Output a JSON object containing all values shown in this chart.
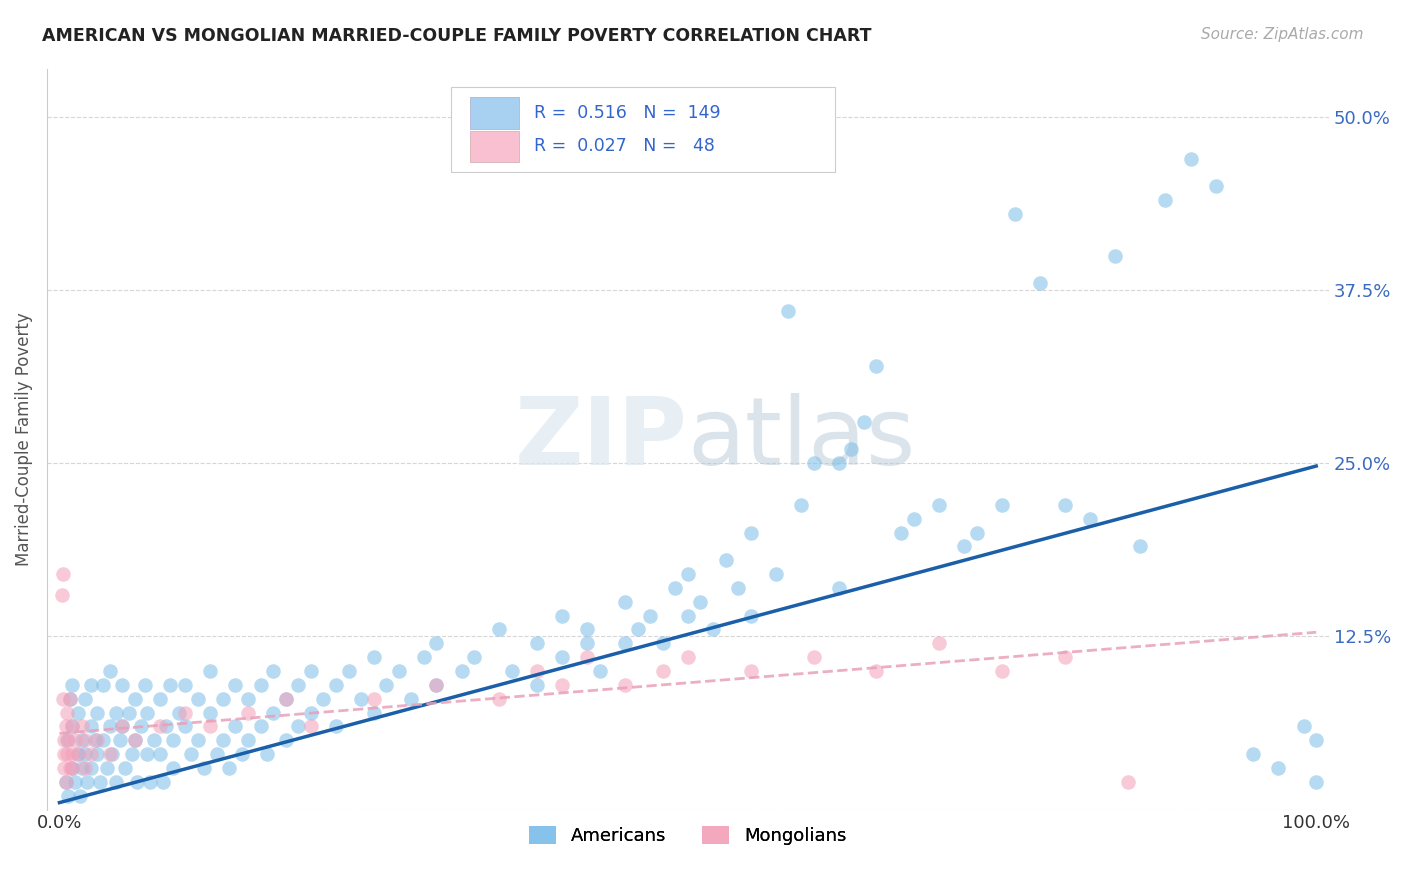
{
  "title": "AMERICAN VS MONGOLIAN MARRIED-COUPLE FAMILY POVERTY CORRELATION CHART",
  "source": "Source: ZipAtlas.com",
  "ylabel": "Married-Couple Family Poverty",
  "yticks": [
    0.0,
    0.125,
    0.25,
    0.375,
    0.5
  ],
  "ytick_labels": [
    "",
    "12.5%",
    "25.0%",
    "37.5%",
    "50.0%"
  ],
  "xlim": [
    -0.01,
    1.01
  ],
  "ylim": [
    0.0,
    0.535
  ],
  "american_color": "#7bbde8",
  "mongolian_color": "#f4a0b8",
  "american_line_color": "#1a5fa8",
  "mongolian_line_color": "#e8a0b8",
  "background_color": "#ffffff",
  "grid_color": "#cccccc",
  "title_color": "#222222",
  "watermark_color": "#dde8f0",
  "legend_am_color": "#a8d0f0",
  "legend_mo_color": "#f8c0d0",
  "am_line_y0": 0.005,
  "am_line_y1": 0.248,
  "mo_line_y0": 0.055,
  "mo_line_y1": 0.128,
  "americans_x": [
    0.005,
    0.006,
    0.007,
    0.008,
    0.01,
    0.01,
    0.01,
    0.012,
    0.015,
    0.015,
    0.016,
    0.018,
    0.018,
    0.02,
    0.02,
    0.022,
    0.025,
    0.025,
    0.025,
    0.028,
    0.03,
    0.03,
    0.032,
    0.035,
    0.035,
    0.038,
    0.04,
    0.04,
    0.042,
    0.045,
    0.045,
    0.048,
    0.05,
    0.05,
    0.052,
    0.055,
    0.058,
    0.06,
    0.06,
    0.062,
    0.065,
    0.068,
    0.07,
    0.07,
    0.072,
    0.075,
    0.08,
    0.08,
    0.082,
    0.085,
    0.088,
    0.09,
    0.09,
    0.095,
    0.1,
    0.1,
    0.105,
    0.11,
    0.11,
    0.115,
    0.12,
    0.12,
    0.125,
    0.13,
    0.13,
    0.135,
    0.14,
    0.14,
    0.145,
    0.15,
    0.15,
    0.16,
    0.16,
    0.165,
    0.17,
    0.17,
    0.18,
    0.18,
    0.19,
    0.19,
    0.2,
    0.2,
    0.21,
    0.22,
    0.22,
    0.23,
    0.24,
    0.25,
    0.25,
    0.26,
    0.27,
    0.28,
    0.29,
    0.3,
    0.3,
    0.32,
    0.33,
    0.35,
    0.36,
    0.38,
    0.38,
    0.4,
    0.4,
    0.42,
    0.42,
    0.43,
    0.45,
    0.45,
    0.46,
    0.47,
    0.48,
    0.49,
    0.5,
    0.5,
    0.51,
    0.52,
    0.53,
    0.54,
    0.55,
    0.55,
    0.57,
    0.58,
    0.59,
    0.6,
    0.62,
    0.62,
    0.63,
    0.64,
    0.65,
    0.67,
    0.68,
    0.7,
    0.72,
    0.73,
    0.75,
    0.76,
    0.78,
    0.8,
    0.82,
    0.84,
    0.86,
    0.88,
    0.9,
    0.92,
    0.95,
    0.97,
    0.99,
    1.0,
    1.0
  ],
  "americans_y": [
    0.02,
    0.05,
    0.01,
    0.08,
    0.03,
    0.06,
    0.09,
    0.02,
    0.04,
    0.07,
    0.01,
    0.05,
    0.03,
    0.04,
    0.08,
    0.02,
    0.06,
    0.09,
    0.03,
    0.05,
    0.04,
    0.07,
    0.02,
    0.05,
    0.09,
    0.03,
    0.06,
    0.1,
    0.04,
    0.07,
    0.02,
    0.05,
    0.06,
    0.09,
    0.03,
    0.07,
    0.04,
    0.08,
    0.05,
    0.02,
    0.06,
    0.09,
    0.04,
    0.07,
    0.02,
    0.05,
    0.08,
    0.04,
    0.02,
    0.06,
    0.09,
    0.05,
    0.03,
    0.07,
    0.06,
    0.09,
    0.04,
    0.08,
    0.05,
    0.03,
    0.07,
    0.1,
    0.04,
    0.08,
    0.05,
    0.03,
    0.09,
    0.06,
    0.04,
    0.08,
    0.05,
    0.09,
    0.06,
    0.04,
    0.1,
    0.07,
    0.08,
    0.05,
    0.09,
    0.06,
    0.1,
    0.07,
    0.08,
    0.09,
    0.06,
    0.1,
    0.08,
    0.11,
    0.07,
    0.09,
    0.1,
    0.08,
    0.11,
    0.09,
    0.12,
    0.1,
    0.11,
    0.13,
    0.1,
    0.12,
    0.09,
    0.14,
    0.11,
    0.13,
    0.12,
    0.1,
    0.15,
    0.12,
    0.13,
    0.14,
    0.12,
    0.16,
    0.14,
    0.17,
    0.15,
    0.13,
    0.18,
    0.16,
    0.14,
    0.2,
    0.17,
    0.36,
    0.22,
    0.25,
    0.25,
    0.16,
    0.26,
    0.28,
    0.32,
    0.2,
    0.21,
    0.22,
    0.19,
    0.2,
    0.22,
    0.43,
    0.38,
    0.22,
    0.21,
    0.4,
    0.19,
    0.44,
    0.47,
    0.45,
    0.04,
    0.03,
    0.06,
    0.02,
    0.05
  ],
  "mongolians_x": [
    0.002,
    0.003,
    0.003,
    0.004,
    0.004,
    0.004,
    0.005,
    0.005,
    0.006,
    0.006,
    0.007,
    0.008,
    0.008,
    0.01,
    0.01,
    0.01,
    0.012,
    0.015,
    0.018,
    0.02,
    0.02,
    0.025,
    0.03,
    0.04,
    0.05,
    0.06,
    0.08,
    0.1,
    0.12,
    0.15,
    0.18,
    0.2,
    0.25,
    0.3,
    0.35,
    0.38,
    0.4,
    0.42,
    0.45,
    0.48,
    0.5,
    0.55,
    0.6,
    0.65,
    0.7,
    0.75,
    0.8,
    0.85
  ],
  "mongolians_y": [
    0.155,
    0.17,
    0.08,
    0.05,
    0.04,
    0.03,
    0.06,
    0.02,
    0.07,
    0.04,
    0.05,
    0.03,
    0.08,
    0.06,
    0.04,
    0.03,
    0.05,
    0.04,
    0.06,
    0.05,
    0.03,
    0.04,
    0.05,
    0.04,
    0.06,
    0.05,
    0.06,
    0.07,
    0.06,
    0.07,
    0.08,
    0.06,
    0.08,
    0.09,
    0.08,
    0.1,
    0.09,
    0.11,
    0.09,
    0.1,
    0.11,
    0.1,
    0.11,
    0.1,
    0.12,
    0.1,
    0.11,
    0.02
  ]
}
